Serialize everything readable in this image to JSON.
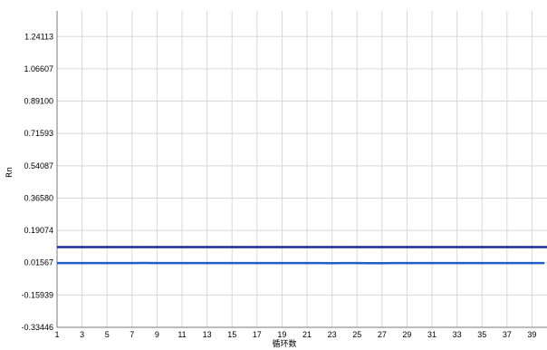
{
  "chart_data": {
    "type": "line",
    "title": "",
    "xlabel": "循环数",
    "ylabel": "Rn",
    "xlim": [
      1,
      40
    ],
    "ylim": [
      -0.33446,
      1.38
    ],
    "grid": true,
    "x_ticks": [
      1,
      3,
      5,
      7,
      9,
      11,
      13,
      15,
      17,
      19,
      21,
      23,
      25,
      27,
      29,
      31,
      33,
      35,
      37,
      39
    ],
    "y_ticks": [
      -0.33446,
      -0.15939,
      0.01567,
      0.19074,
      0.3658,
      0.54087,
      0.71593,
      0.891,
      1.06607,
      1.24113
    ],
    "y_tick_labels": [
      "-0.33446",
      "-0.15939",
      "0.01567",
      "0.19074",
      "0.36580",
      "0.54087",
      "0.71593",
      "0.89100",
      "1.06607",
      "1.24113"
    ],
    "threshold": {
      "value": 0.1,
      "color": "#1a2e96"
    },
    "series": [
      {
        "color": "#1f5fc8",
        "x": [
          1,
          2,
          3,
          4,
          5,
          6,
          7,
          8,
          9,
          10,
          11,
          12,
          13,
          14,
          15,
          16,
          17,
          18,
          19,
          20,
          21,
          22,
          23,
          24,
          25,
          26,
          27,
          28,
          29,
          30,
          31,
          32,
          33,
          34,
          35,
          36,
          37,
          38,
          39,
          40
        ],
        "values": [
          0.0135,
          0.0138,
          0.0135,
          0.0136,
          0.0139,
          0.0137,
          0.0138,
          0.0142,
          0.014,
          0.0138,
          0.0139,
          0.0137,
          0.0136,
          0.0138,
          0.0137,
          0.0135,
          0.0136,
          0.0137,
          0.0139,
          0.0138,
          0.0136,
          0.0135,
          0.0134,
          0.0136,
          0.0137,
          0.0134,
          0.0133,
          0.0135,
          0.0136,
          0.0135,
          0.0136,
          0.0137,
          0.0136,
          0.0135,
          0.0136,
          0.0137,
          0.0136,
          0.0135,
          0.0136,
          0.0135
        ]
      }
    ],
    "colors": {
      "grid": "#d8d8d8",
      "axis": "#7a7a7a",
      "background": "#ffffff"
    }
  }
}
